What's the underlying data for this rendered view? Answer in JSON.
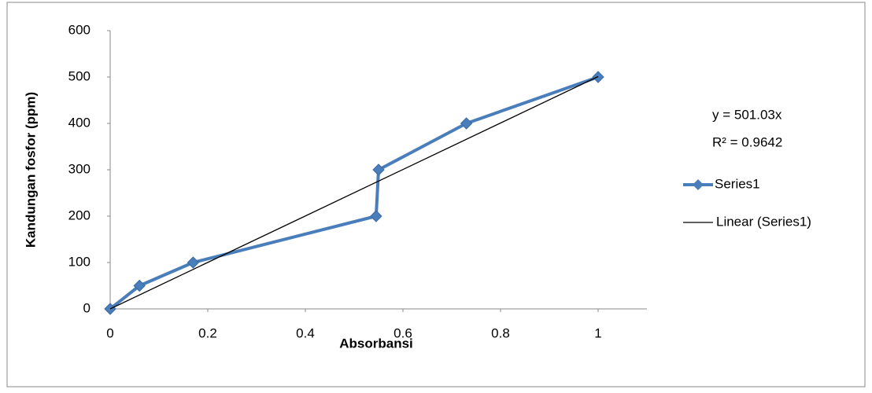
{
  "chart_data": {
    "type": "scatter",
    "xlabel": "Absorbansi",
    "ylabel": "Kandungan fosfor (ppm)",
    "series": [
      {
        "name": "Series1",
        "color": "#4a7ebb",
        "x": [
          0,
          0.06,
          0.17,
          0.545,
          0.55,
          0.73,
          1.0
        ],
        "values": [
          0,
          50,
          100,
          200,
          300,
          400,
          500
        ]
      },
      {
        "name": "Linear (Series1)",
        "color": "#000000",
        "x": [
          0,
          1
        ],
        "values": [
          0,
          501.03
        ]
      }
    ],
    "annotations": [
      "y = 501.03x",
      "R² = 0.9642"
    ],
    "xlim": [
      0,
      1.1
    ],
    "xticks": [
      0,
      0.2,
      0.4,
      0.6,
      0.8,
      1
    ],
    "ylim": [
      0,
      600
    ],
    "yticks": [
      0,
      100,
      200,
      300,
      400,
      500,
      600
    ],
    "grid": false,
    "legend": "right"
  }
}
